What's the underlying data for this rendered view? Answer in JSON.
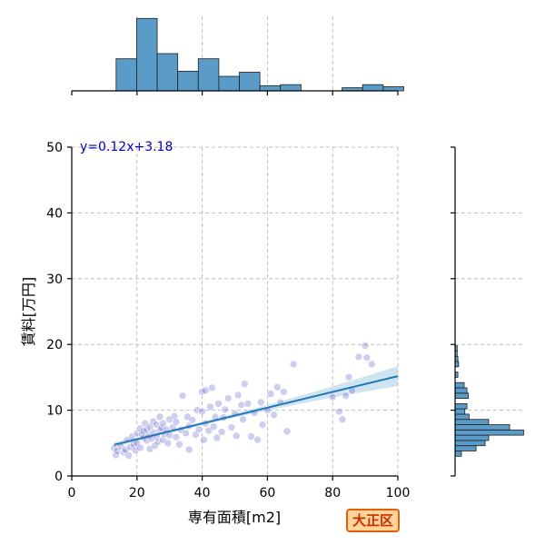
{
  "chart_data": {
    "type": "scatter",
    "xlabel": "専有面積[m2]",
    "ylabel": "賃料[万円]",
    "xlim": [
      0,
      100
    ],
    "ylim": [
      0,
      50
    ],
    "x_ticks": [
      0,
      20,
      40,
      60,
      80,
      100
    ],
    "y_ticks": [
      0,
      10,
      20,
      30,
      40,
      50
    ],
    "grid": true,
    "regression": {
      "label": "y=0.12x+3.18",
      "slope": 0.12,
      "intercept": 3.18,
      "x_range": [
        13,
        100
      ]
    },
    "points": [
      [
        13,
        4.2
      ],
      [
        13.5,
        3.2
      ],
      [
        14,
        3.8
      ],
      [
        15,
        4.5
      ],
      [
        16,
        3.6
      ],
      [
        16.5,
        4.0
      ],
      [
        17,
        5.5
      ],
      [
        17.5,
        3.1
      ],
      [
        18,
        4.4
      ],
      [
        18.5,
        6.0
      ],
      [
        19,
        4.8
      ],
      [
        19.5,
        3.9
      ],
      [
        20,
        6.5
      ],
      [
        20,
        5.0
      ],
      [
        21,
        7.2
      ],
      [
        21,
        4.3
      ],
      [
        21.5,
        6.3
      ],
      [
        22,
        5.8
      ],
      [
        22,
        6.8
      ],
      [
        22.5,
        8.0
      ],
      [
        23,
        5.4
      ],
      [
        23,
        7.0
      ],
      [
        23.5,
        6.1
      ],
      [
        24,
        4.1
      ],
      [
        24,
        7.5
      ],
      [
        24.5,
        5.7
      ],
      [
        25,
        6.6
      ],
      [
        25,
        8.3
      ],
      [
        25.5,
        4.6
      ],
      [
        26,
        6.0
      ],
      [
        26,
        7.8
      ],
      [
        26.5,
        5.2
      ],
      [
        27,
        6.9
      ],
      [
        27,
        9.0
      ],
      [
        27.5,
        7.3
      ],
      [
        28,
        5.5
      ],
      [
        28,
        8.0
      ],
      [
        28.5,
        6.4
      ],
      [
        29,
        7.1
      ],
      [
        29.5,
        5.0
      ],
      [
        30,
        8.6
      ],
      [
        30,
        6.2
      ],
      [
        31,
        7.4
      ],
      [
        31.5,
        9.1
      ],
      [
        32,
        5.9
      ],
      [
        32,
        8.2
      ],
      [
        33,
        4.8
      ],
      [
        33.5,
        7.0
      ],
      [
        34,
        12.2
      ],
      [
        35,
        6.5
      ],
      [
        35.5,
        9.0
      ],
      [
        36,
        7.6
      ],
      [
        36,
        4.0
      ],
      [
        37,
        8.5
      ],
      [
        38,
        6.3
      ],
      [
        38.5,
        10.0
      ],
      [
        39,
        7.1
      ],
      [
        40,
        9.8
      ],
      [
        40,
        12.8
      ],
      [
        40.5,
        5.5
      ],
      [
        41,
        8.0
      ],
      [
        41,
        13.0
      ],
      [
        42,
        6.9
      ],
      [
        42.5,
        10.5
      ],
      [
        43,
        13.4
      ],
      [
        43.5,
        7.5
      ],
      [
        44,
        9.0
      ],
      [
        44.5,
        5.8
      ],
      [
        45,
        11.0
      ],
      [
        46,
        6.7
      ],
      [
        46.5,
        8.9
      ],
      [
        47,
        10.1
      ],
      [
        48,
        11.8
      ],
      [
        49,
        7.4
      ],
      [
        50,
        9.5
      ],
      [
        50.5,
        6.1
      ],
      [
        51,
        12.3
      ],
      [
        52,
        10.8
      ],
      [
        52.5,
        8.6
      ],
      [
        53,
        14.0
      ],
      [
        54,
        11.0
      ],
      [
        55,
        6.0
      ],
      [
        56,
        9.6
      ],
      [
        57,
        5.5
      ],
      [
        58,
        11.2
      ],
      [
        58.5,
        7.8
      ],
      [
        60,
        10.0
      ],
      [
        61,
        12.5
      ],
      [
        62,
        9.3
      ],
      [
        63,
        13.5
      ],
      [
        64,
        11.2
      ],
      [
        65,
        12.8
      ],
      [
        66,
        6.8
      ],
      [
        68,
        17.0
      ],
      [
        80,
        12.0
      ],
      [
        82,
        9.8
      ],
      [
        83,
        8.6
      ],
      [
        84,
        12.2
      ],
      [
        85,
        15.0
      ],
      [
        86,
        13.0
      ],
      [
        88,
        18.1
      ],
      [
        90,
        19.8
      ],
      [
        90.5,
        18.0
      ],
      [
        92,
        17.0
      ]
    ],
    "hist_x": {
      "bin_width": 6.3,
      "bins": [
        {
          "start": 13.6,
          "height": 0.31
        },
        {
          "start": 19.9,
          "height": 0.7
        },
        {
          "start": 26.2,
          "height": 0.36
        },
        {
          "start": 32.5,
          "height": 0.19
        },
        {
          "start": 38.8,
          "height": 0.31
        },
        {
          "start": 45.1,
          "height": 0.14
        },
        {
          "start": 51.4,
          "height": 0.18
        },
        {
          "start": 57.7,
          "height": 0.05
        },
        {
          "start": 64.0,
          "height": 0.06
        },
        {
          "start": 70.3,
          "height": 0.0
        },
        {
          "start": 76.6,
          "height": 0.0
        },
        {
          "start": 82.9,
          "height": 0.03
        },
        {
          "start": 89.2,
          "height": 0.06
        },
        {
          "start": 95.5,
          "height": 0.04
        }
      ]
    },
    "hist_y": {
      "bin_width": 0.8,
      "bins": [
        {
          "start": 3.0,
          "length": 0.09
        },
        {
          "start": 3.8,
          "length": 0.3
        },
        {
          "start": 4.6,
          "length": 0.43
        },
        {
          "start": 5.4,
          "length": 0.48
        },
        {
          "start": 6.2,
          "length": 0.98
        },
        {
          "start": 7.0,
          "length": 0.78
        },
        {
          "start": 7.8,
          "length": 0.48
        },
        {
          "start": 8.6,
          "length": 0.2
        },
        {
          "start": 9.4,
          "length": 0.14
        },
        {
          "start": 10.2,
          "length": 0.17
        },
        {
          "start": 11.0,
          "length": 0.0
        },
        {
          "start": 11.8,
          "length": 0.19
        },
        {
          "start": 12.6,
          "length": 0.17
        },
        {
          "start": 13.4,
          "length": 0.13
        },
        {
          "start": 14.2,
          "length": 0.0
        },
        {
          "start": 15.0,
          "length": 0.04
        },
        {
          "start": 15.8,
          "length": 0.0
        },
        {
          "start": 16.6,
          "length": 0.05
        },
        {
          "start": 17.4,
          "length": 0.04
        },
        {
          "start": 18.2,
          "length": 0.03
        },
        {
          "start": 19.0,
          "length": 0.03
        }
      ]
    },
    "colors": {
      "points": "#3a3ac0",
      "line": "#1f77b4",
      "band": "#9ecae1",
      "bars": "#5b9bc8",
      "label": "#0000c0"
    }
  },
  "badge": {
    "label": "大正区",
    "bg": "#ffd39a",
    "border": "#e0600c",
    "text": "#c43000"
  }
}
